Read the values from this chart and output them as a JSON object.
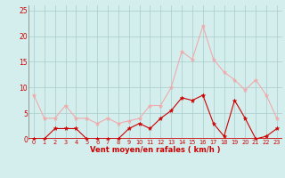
{
  "x": [
    0,
    1,
    2,
    3,
    4,
    5,
    6,
    7,
    8,
    9,
    10,
    11,
    12,
    13,
    14,
    15,
    16,
    17,
    18,
    19,
    20,
    21,
    22,
    23
  ],
  "rafales": [
    8.5,
    4.0,
    4.0,
    6.5,
    4.0,
    4.0,
    3.0,
    4.0,
    3.0,
    3.5,
    4.0,
    6.5,
    6.5,
    10.0,
    17.0,
    15.5,
    22.0,
    15.5,
    13.0,
    11.5,
    9.5,
    11.5,
    8.5,
    4.0
  ],
  "moyen": [
    0.0,
    0.0,
    2.0,
    2.0,
    2.0,
    0.0,
    0.0,
    0.0,
    0.0,
    2.0,
    3.0,
    2.0,
    4.0,
    5.5,
    8.0,
    7.5,
    8.5,
    3.0,
    0.5,
    7.5,
    4.0,
    0.0,
    0.5,
    2.0
  ],
  "rafales_color": "#F0AAAA",
  "moyen_color": "#CC0000",
  "bg_color": "#D4EEEE",
  "grid_color": "#AACCCC",
  "axis_color": "#CC0000",
  "tick_color": "#CC0000",
  "xlabel": "Vent moyen/en rafales ( km/h )",
  "ylim": [
    0,
    26
  ],
  "yticks": [
    0,
    5,
    10,
    15,
    20,
    25
  ],
  "xticks": [
    0,
    1,
    2,
    3,
    4,
    5,
    6,
    7,
    8,
    9,
    10,
    11,
    12,
    13,
    14,
    15,
    16,
    17,
    18,
    19,
    20,
    21,
    22,
    23
  ]
}
